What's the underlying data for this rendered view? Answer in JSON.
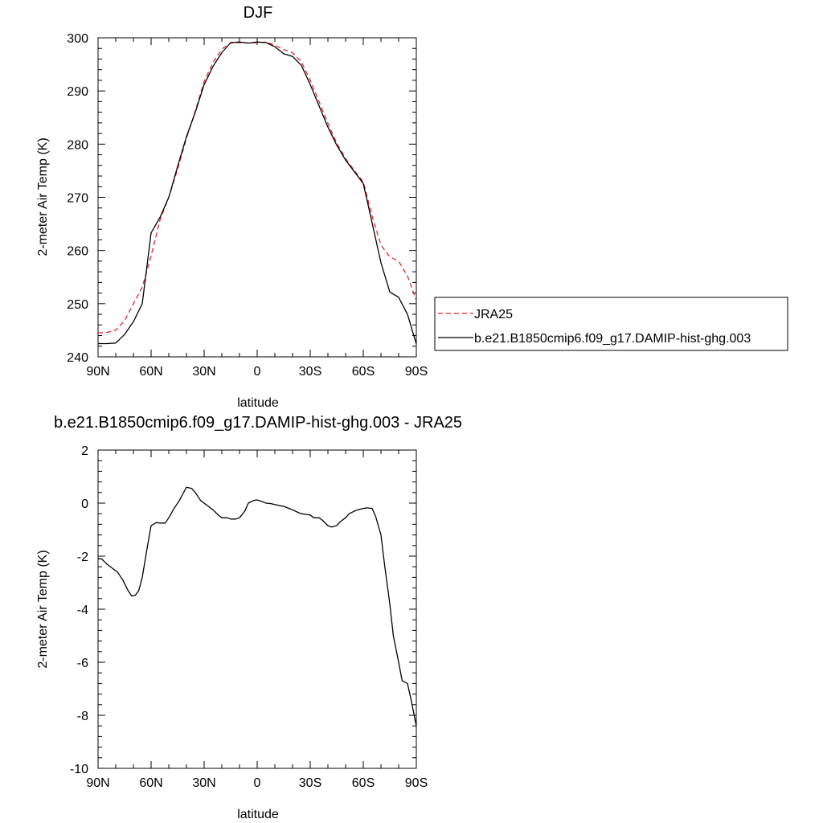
{
  "chart_data": [
    {
      "type": "line",
      "title": "DJF",
      "xlabel": "latitude",
      "ylabel": "2-meter Air Temp (K)",
      "xlim": [
        90,
        -90
      ],
      "ylim": [
        240,
        300
      ],
      "x_ticks": [
        90,
        60,
        30,
        0,
        -30,
        -60,
        -90
      ],
      "x_tick_labels": [
        "90N",
        "60N",
        "30N",
        "0",
        "30S",
        "60S",
        "90S"
      ],
      "y_ticks": [
        240,
        250,
        260,
        270,
        280,
        290,
        300
      ],
      "y_tick_labels": [
        "240",
        "250",
        "260",
        "270",
        "280",
        "290",
        "300"
      ],
      "grid": false,
      "legend_position": "right",
      "series": [
        {
          "name": "JRA25",
          "color": "#e8202a",
          "dash": "dashed",
          "x": [
            90,
            85,
            80,
            75,
            70,
            65,
            60,
            55,
            50,
            45,
            40,
            35,
            30,
            25,
            20,
            15,
            10,
            5,
            0,
            -5,
            -10,
            -15,
            -20,
            -25,
            -30,
            -35,
            -40,
            -45,
            -50,
            -55,
            -60,
            -65,
            -70,
            -75,
            -80,
            -85,
            -90
          ],
          "values": [
            244.5,
            244.6,
            245.0,
            246.8,
            250.0,
            253.1,
            259.0,
            265.7,
            270.0,
            275.3,
            281.1,
            286.2,
            291.8,
            295.3,
            297.9,
            299.0,
            299.1,
            299.0,
            299.1,
            299.2,
            298.6,
            297.8,
            297.2,
            295.5,
            292.0,
            288.0,
            283.9,
            280.2,
            277.3,
            275.0,
            272.9,
            266.5,
            261.0,
            258.8,
            258.0,
            255.2,
            250.6
          ]
        },
        {
          "name": "b.e21.B1850cmip6.f09_g17.DAMIP-hist-ghg.003",
          "color": "#000000",
          "dash": "solid",
          "x": [
            90,
            85,
            80,
            75,
            70,
            65,
            60,
            55,
            50,
            45,
            40,
            35,
            30,
            25,
            20,
            15,
            10,
            5,
            0,
            -5,
            -10,
            -15,
            -20,
            -25,
            -30,
            -35,
            -40,
            -45,
            -50,
            -55,
            -60,
            -65,
            -70,
            -75,
            -80,
            -85,
            -90
          ],
          "values": [
            242.5,
            242.5,
            242.6,
            244.2,
            246.6,
            250.0,
            263.3,
            266.2,
            270.0,
            275.8,
            281.4,
            286.0,
            291.2,
            294.6,
            297.2,
            299.1,
            299.2,
            299.0,
            299.2,
            299.1,
            298.3,
            297.0,
            296.5,
            294.8,
            291.2,
            287.2,
            283.2,
            279.8,
            277.0,
            274.8,
            272.6,
            265.2,
            257.7,
            252.2,
            251.2,
            248.0,
            242.4
          ]
        }
      ]
    },
    {
      "type": "line",
      "title": "b.e21.B1850cmip6.f09_g17.DAMIP-hist-ghg.003 - JRA25",
      "xlabel": "latitude",
      "ylabel": "2-meter Air Temp (K)",
      "xlim": [
        90,
        -90
      ],
      "ylim": [
        -10,
        2
      ],
      "x_ticks": [
        90,
        60,
        30,
        0,
        -30,
        -60,
        -90
      ],
      "x_tick_labels": [
        "90N",
        "60N",
        "30N",
        "0",
        "30S",
        "60S",
        "90S"
      ],
      "y_ticks": [
        -10,
        -8,
        -6,
        -4,
        -2,
        0,
        2
      ],
      "y_tick_labels": [
        "-10",
        "-8",
        "-6",
        "-4",
        "-2",
        "0",
        "2"
      ],
      "grid": false,
      "series": [
        {
          "color": "#000000",
          "dash": "solid",
          "x": [
            90,
            88,
            85,
            82,
            79,
            76,
            73,
            71,
            69,
            67,
            65,
            62,
            60,
            57,
            55,
            52,
            50,
            47,
            44,
            42,
            40,
            37,
            35,
            32,
            30,
            27,
            25,
            22,
            20,
            17,
            15,
            12,
            10,
            7,
            5,
            2,
            0,
            -3,
            -5,
            -8,
            -10,
            -13,
            -15,
            -18,
            -20,
            -23,
            -25,
            -27,
            -30,
            -32,
            -35,
            -37,
            -40,
            -42,
            -45,
            -47,
            -50,
            -52,
            -55,
            -57,
            -60,
            -62,
            -65,
            -67,
            -70,
            -72,
            -75,
            -77,
            -80,
            -82,
            -85,
            -87,
            -90
          ],
          "values": [
            -2.1,
            -2.1,
            -2.3,
            -2.45,
            -2.6,
            -2.9,
            -3.3,
            -3.5,
            -3.48,
            -3.3,
            -2.8,
            -1.6,
            -0.85,
            -0.73,
            -0.75,
            -0.75,
            -0.55,
            -0.2,
            0.1,
            0.35,
            0.6,
            0.55,
            0.4,
            0.1,
            0.0,
            -0.15,
            -0.25,
            -0.45,
            -0.55,
            -0.55,
            -0.6,
            -0.6,
            -0.55,
            -0.3,
            0.0,
            0.1,
            0.12,
            0.05,
            0.0,
            -0.02,
            -0.05,
            -0.1,
            -0.12,
            -0.2,
            -0.25,
            -0.35,
            -0.4,
            -0.42,
            -0.45,
            -0.55,
            -0.55,
            -0.65,
            -0.85,
            -0.9,
            -0.85,
            -0.7,
            -0.55,
            -0.4,
            -0.3,
            -0.25,
            -0.2,
            -0.18,
            -0.2,
            -0.5,
            -1.2,
            -2.3,
            -3.8,
            -5.0,
            -6.0,
            -6.7,
            -6.8,
            -7.4,
            -8.4
          ]
        }
      ]
    }
  ]
}
